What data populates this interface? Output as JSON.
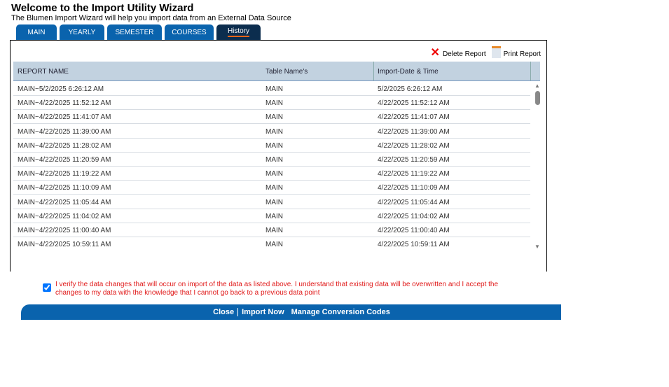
{
  "title": "Welcome to the Import Utility Wizard",
  "subtitle": "The Blumen Import Wizard will help you import data from an External Data Source",
  "tabs": [
    {
      "label": "MAIN"
    },
    {
      "label": "YEARLY"
    },
    {
      "label": "SEMESTER"
    },
    {
      "label": "COURSES"
    },
    {
      "label": "History",
      "active": true
    }
  ],
  "actions": {
    "delete": "Delete Report",
    "print": "Print Report"
  },
  "columns": [
    "REPORT NAME",
    "Table Name's",
    "Import-Date & Time"
  ],
  "rows": [
    [
      "MAIN~5/2/2025 6:26:12 AM",
      "MAIN",
      "5/2/2025 6:26:12 AM"
    ],
    [
      "MAIN~4/22/2025 11:52:12 AM",
      "MAIN",
      "4/22/2025 11:52:12 AM"
    ],
    [
      "MAIN~4/22/2025 11:41:07 AM",
      "MAIN",
      "4/22/2025 11:41:07 AM"
    ],
    [
      "MAIN~4/22/2025 11:39:00 AM",
      "MAIN",
      "4/22/2025 11:39:00 AM"
    ],
    [
      "MAIN~4/22/2025 11:28:02 AM",
      "MAIN",
      "4/22/2025 11:28:02 AM"
    ],
    [
      "MAIN~4/22/2025 11:20:59 AM",
      "MAIN",
      "4/22/2025 11:20:59 AM"
    ],
    [
      "MAIN~4/22/2025 11:19:22 AM",
      "MAIN",
      "4/22/2025 11:19:22 AM"
    ],
    [
      "MAIN~4/22/2025 11:10:09 AM",
      "MAIN",
      "4/22/2025 11:10:09 AM"
    ],
    [
      "MAIN~4/22/2025 11:05:44 AM",
      "MAIN",
      "4/22/2025 11:05:44 AM"
    ],
    [
      "MAIN~4/22/2025 11:04:02 AM",
      "MAIN",
      "4/22/2025 11:04:02 AM"
    ],
    [
      "MAIN~4/22/2025 11:00:40 AM",
      "MAIN",
      "4/22/2025 11:00:40 AM"
    ],
    [
      "MAIN~4/22/2025 10:59:11 AM",
      "MAIN",
      "4/22/2025 10:59:11 AM"
    ]
  ],
  "verify": {
    "checked": true,
    "text": "I verify the data changes that will occur on import of the data as listed above. I understand that existing data will be overwritten and I accept the changes to my data with the knowledge that I cannot go back to a previous data point"
  },
  "footer": {
    "close": "Close",
    "import": "Import Now",
    "manage": "Manage Conversion Codes"
  }
}
